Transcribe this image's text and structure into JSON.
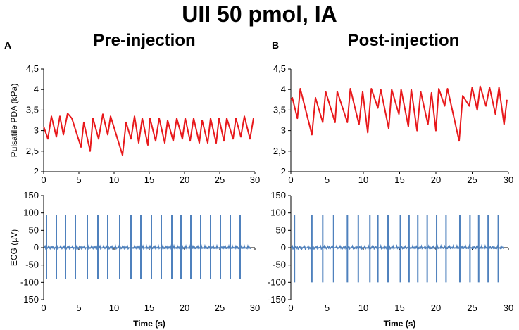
{
  "figure": {
    "title": "UII 50 pmol, IA",
    "panels": [
      {
        "letter": "A",
        "title": "Pre-injection"
      },
      {
        "letter": "B",
        "title": "Post-injection"
      }
    ],
    "colors": {
      "pressure": "#e8191c",
      "ecg": "#4f81bd"
    }
  },
  "chart_data": [
    {
      "type": "line",
      "panel": "A",
      "title": "Pre-injection",
      "ylabel": "Pulsatile PDA (kPa)",
      "xlim": [
        0,
        30
      ],
      "ylim": [
        2,
        4.5
      ],
      "xticks": [
        "0",
        "5",
        "10",
        "15",
        "20",
        "25",
        "30"
      ],
      "yticks": [
        "2",
        "2,5",
        "3",
        "3,5",
        "4",
        "4,5"
      ],
      "series": [
        {
          "name": "Pulsatile PDA",
          "color": "#e8191c",
          "x": [
            0,
            0.6,
            1.1,
            1.8,
            2.3,
            2.8,
            3.4,
            4.0,
            5.3,
            5.7,
            6.6,
            7.0,
            7.8,
            8.4,
            9.1,
            9.5,
            11.2,
            11.7,
            12.4,
            12.9,
            13.5,
            14.0,
            14.8,
            15.1,
            15.9,
            16.4,
            17.2,
            17.6,
            18.4,
            18.9,
            19.7,
            20.1,
            20.8,
            21.3,
            22.1,
            22.5,
            23.3,
            23.7,
            24.5,
            24.9,
            25.6,
            26.0,
            26.9,
            27.3,
            28.0,
            28.5,
            29.3,
            29.8
          ],
          "y": [
            3.1,
            2.8,
            3.35,
            2.85,
            3.35,
            2.9,
            3.42,
            3.3,
            2.6,
            3.2,
            2.5,
            3.3,
            2.8,
            3.4,
            2.9,
            3.35,
            2.4,
            3.2,
            2.8,
            3.35,
            2.7,
            3.3,
            2.65,
            3.3,
            2.75,
            3.3,
            2.7,
            3.25,
            2.75,
            3.3,
            2.8,
            3.3,
            2.75,
            3.3,
            2.7,
            3.25,
            2.7,
            3.3,
            2.7,
            3.3,
            2.75,
            3.3,
            2.8,
            3.3,
            2.85,
            3.35,
            2.8,
            3.3
          ]
        }
      ]
    },
    {
      "type": "line",
      "panel": "B",
      "title": "Post-injection",
      "ylabel": "",
      "xlim": [
        0,
        30
      ],
      "ylim": [
        2,
        4.5
      ],
      "xticks": [
        "0",
        "5",
        "10",
        "15",
        "20",
        "25",
        "30"
      ],
      "yticks": [
        "2",
        "2,5",
        "3",
        "3,5",
        "4",
        "4,5"
      ],
      "series": [
        {
          "name": "Pulsatile PDA",
          "color": "#e8191c",
          "x": [
            0,
            0.2,
            0.9,
            1.3,
            2.9,
            3.4,
            4.4,
            4.8,
            6.1,
            6.4,
            7.8,
            8.2,
            9.4,
            9.9,
            10.6,
            11.1,
            12.0,
            12.4,
            13.5,
            13.9,
            14.9,
            15.2,
            16.2,
            16.6,
            17.4,
            17.9,
            18.9,
            19.4,
            20.0,
            20.4,
            21.2,
            21.6,
            23.2,
            23.7,
            24.6,
            25.0,
            25.7,
            26.1,
            26.9,
            27.4,
            28.2,
            28.7,
            29.4,
            29.8
          ],
          "y": [
            3.75,
            3.8,
            3.3,
            4.02,
            2.9,
            3.8,
            3.2,
            3.95,
            3.2,
            3.95,
            3.2,
            4.02,
            3.15,
            3.95,
            2.95,
            4.02,
            3.55,
            4.0,
            3.05,
            4.0,
            3.4,
            4.0,
            3.1,
            4.0,
            3.0,
            3.95,
            3.15,
            3.92,
            3.0,
            4.02,
            3.6,
            4.02,
            2.75,
            3.85,
            3.6,
            4.05,
            3.5,
            4.08,
            3.6,
            4.05,
            3.4,
            4.05,
            3.15,
            3.75
          ]
        }
      ]
    },
    {
      "type": "line",
      "panel": "A",
      "ylabel": "ECG (µV)",
      "xlabel": "Time (s)",
      "xlim": [
        0,
        30
      ],
      "ylim": [
        -150,
        150
      ],
      "xticks": [
        "0",
        "5",
        "10",
        "15",
        "20",
        "25",
        "30"
      ],
      "yticks": [
        "-150",
        "-100",
        "-50",
        "0",
        "50",
        "100",
        "150"
      ],
      "series": [
        {
          "name": "ECG",
          "color": "#4f81bd",
          "beats_s": [
            0.4,
            1.8,
            3.1,
            4.5,
            6.2,
            7.7,
            9.1,
            10.8,
            12.4,
            13.8,
            15.3,
            16.7,
            18.2,
            19.5,
            20.9,
            22.3,
            23.7,
            25.1,
            26.5,
            27.9
          ],
          "r_peak": 95,
          "s_trough": -90
        }
      ]
    },
    {
      "type": "line",
      "panel": "B",
      "ylabel": "",
      "xlabel": "Time (s)",
      "xlim": [
        0,
        30
      ],
      "ylim": [
        -150,
        150
      ],
      "xticks": [
        "0",
        "5",
        "10",
        "15",
        "20",
        "25",
        "30"
      ],
      "yticks": [
        "-150",
        "-100",
        "-50",
        "0",
        "50",
        "100",
        "150"
      ],
      "series": [
        {
          "name": "ECG",
          "color": "#4f81bd",
          "beats_s": [
            0.5,
            2.9,
            4.4,
            5.9,
            7.8,
            9.3,
            10.9,
            12.0,
            13.4,
            15.1,
            16.3,
            17.5,
            18.8,
            20.1,
            21.4,
            23.3,
            24.7,
            25.9,
            27.2,
            28.6
          ],
          "r_peak": 95,
          "s_trough": -100
        }
      ]
    }
  ]
}
